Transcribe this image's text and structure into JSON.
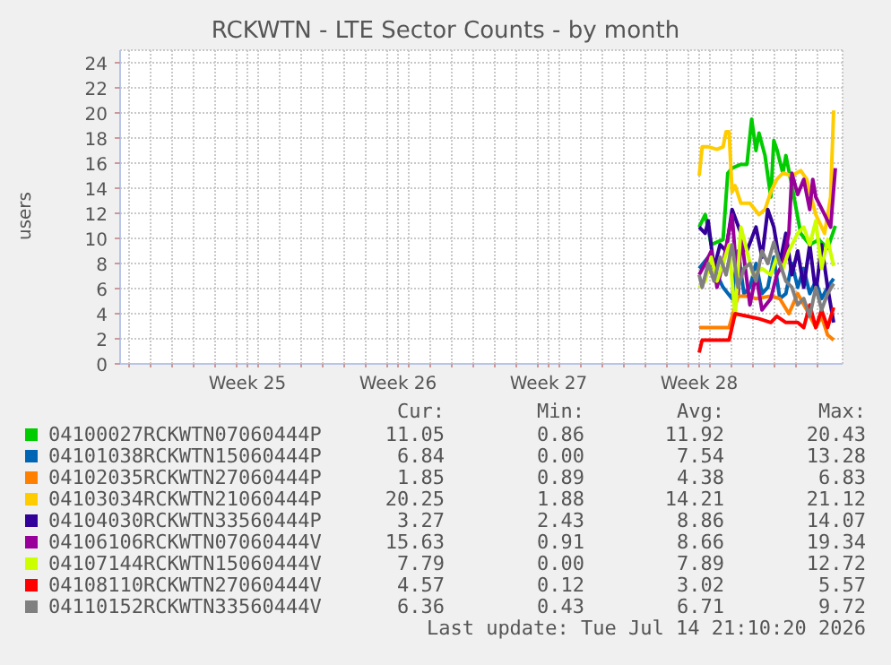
{
  "chart_data": {
    "type": "line",
    "title": "RCKWTN - LTE Sector Counts - by month",
    "ylabel": "users",
    "xlim": [
      "2026-06-11T14:00",
      "2026-07-15T04:00"
    ],
    "xticks": [
      {
        "value": "2026-06-12",
        "label": null
      },
      {
        "value": "2026-06-13",
        "label": null
      },
      {
        "value": "2026-06-14",
        "label": null
      },
      {
        "value": "2026-06-15",
        "label": null
      },
      {
        "value": "2026-06-16",
        "label": null
      },
      {
        "value": "2026-06-17",
        "label": null
      },
      {
        "value": "2026-06-17T12:00",
        "label": "Week 25"
      },
      {
        "value": "2026-06-18",
        "label": null
      },
      {
        "value": "2026-06-19",
        "label": null
      },
      {
        "value": "2026-06-20",
        "label": null
      },
      {
        "value": "2026-06-21",
        "label": null
      },
      {
        "value": "2026-06-22",
        "label": null
      },
      {
        "value": "2026-06-23",
        "label": null
      },
      {
        "value": "2026-06-24",
        "label": null
      },
      {
        "value": "2026-06-24T12:00",
        "label": "Week 26"
      },
      {
        "value": "2026-06-25",
        "label": null
      },
      {
        "value": "2026-06-26",
        "label": null
      },
      {
        "value": "2026-06-27",
        "label": null
      },
      {
        "value": "2026-06-28",
        "label": null
      },
      {
        "value": "2026-06-29",
        "label": null
      },
      {
        "value": "2026-06-30",
        "label": null
      },
      {
        "value": "2026-07-01",
        "label": null
      },
      {
        "value": "2026-07-01T12:00",
        "label": "Week 27"
      },
      {
        "value": "2026-07-02",
        "label": null
      },
      {
        "value": "2026-07-03",
        "label": null
      },
      {
        "value": "2026-07-04",
        "label": null
      },
      {
        "value": "2026-07-05",
        "label": null
      },
      {
        "value": "2026-07-06",
        "label": null
      },
      {
        "value": "2026-07-07",
        "label": null
      },
      {
        "value": "2026-07-08",
        "label": null
      },
      {
        "value": "2026-07-08T12:00",
        "label": "Week 28"
      },
      {
        "value": "2026-07-09",
        "label": null
      },
      {
        "value": "2026-07-10",
        "label": null
      },
      {
        "value": "2026-07-11",
        "label": null
      },
      {
        "value": "2026-07-12",
        "label": null
      },
      {
        "value": "2026-07-13",
        "label": null
      },
      {
        "value": "2026-07-14",
        "label": null
      }
    ],
    "ylim": [
      0,
      25
    ],
    "yticks": [
      0,
      2,
      4,
      6,
      8,
      10,
      12,
      14,
      16,
      18,
      20,
      22,
      24
    ],
    "grid": true,
    "legend": "bottom",
    "series": [
      {
        "name": "04100027RCKWTN07060444P",
        "color": "#00cc00",
        "x": [
          "2026-07-08T12:00",
          "2026-07-08T18:43",
          "2026-07-09T01:26",
          "2026-07-09T07:55",
          "2026-07-09T14:38",
          "2026-07-09T19:55",
          "2026-07-10T00:43",
          "2026-07-10T10:34",
          "2026-07-10T17:17",
          "2026-07-10T22:34",
          "2026-07-11T03:22",
          "2026-07-11T06:43",
          "2026-07-11T13:26",
          "2026-07-11T19:55",
          "2026-07-11T23:17",
          "2026-07-12T02:38",
          "2026-07-12T09:22",
          "2026-07-12T12:43",
          "2026-07-12T19:26",
          "2026-07-13T05:17",
          "2026-07-13T15:22",
          "2026-07-14T01:26",
          "2026-07-14T11:17",
          "2026-07-14T19:55"
        ],
        "values": [
          10.9,
          11.9,
          9.5,
          9.7,
          9.9,
          15.2,
          15.6,
          15.9,
          15.9,
          19.5,
          17.0,
          18.4,
          16.6,
          13.3,
          17.8,
          17.1,
          15.2,
          16.6,
          14.2,
          10.4,
          9.5,
          9.9,
          9.2,
          11.0
        ]
      },
      {
        "name": "04101038RCKWTN15060444P",
        "color": "#0066b3",
        "x": [
          "2026-07-08T12:00",
          "2026-07-08T22:05",
          "2026-07-09T07:55",
          "2026-07-09T14:38",
          "2026-07-10T00:43",
          "2026-07-10T07:26",
          "2026-07-10T13:55",
          "2026-07-10T20:38",
          "2026-07-11T03:22",
          "2026-07-11T10:05",
          "2026-07-11T16:34",
          "2026-07-11T23:17",
          "2026-07-12T06:00",
          "2026-07-12T12:43",
          "2026-07-12T19:26",
          "2026-07-13T01:55",
          "2026-07-13T08:38",
          "2026-07-13T15:22",
          "2026-07-13T22:05",
          "2026-07-14T04:34",
          "2026-07-14T11:17",
          "2026-07-14T18:00"
        ],
        "values": [
          7.6,
          8.5,
          7.1,
          6.1,
          5.2,
          9.0,
          5.6,
          6.1,
          8.0,
          5.6,
          6.1,
          8.5,
          5.2,
          5.6,
          8.0,
          6.1,
          7.6,
          5.6,
          6.6,
          5.2,
          6.1,
          6.8
        ]
      },
      {
        "name": "04102035RCKWTN27060444P",
        "color": "#ff8000",
        "x": [
          "2026-07-08T12:00",
          "2026-07-08T22:05",
          "2026-07-09T07:55",
          "2026-07-09T21:22",
          "2026-07-10T07:26",
          "2026-07-10T17:17",
          "2026-07-11T03:22",
          "2026-07-11T19:55",
          "2026-07-12T06:00",
          "2026-07-12T16:05",
          "2026-07-13T01:55",
          "2026-07-13T12:00",
          "2026-07-13T22:05",
          "2026-07-14T04:34",
          "2026-07-14T11:17",
          "2026-07-14T18:00"
        ],
        "values": [
          2.9,
          2.9,
          2.9,
          2.9,
          5.4,
          5.4,
          5.2,
          5.4,
          5.2,
          4.0,
          5.6,
          4.3,
          2.9,
          3.8,
          2.3,
          1.9
        ]
      },
      {
        "name": "04103034RCKWTN21060444P",
        "color": "#ffcc00",
        "x": [
          "2026-07-08T12:00",
          "2026-07-08T15:22",
          "2026-07-08T22:05",
          "2026-07-09T07:55",
          "2026-07-09T14:38",
          "2026-07-09T18:00",
          "2026-07-09T21:22",
          "2026-07-10T00:43",
          "2026-07-10T04:05",
          "2026-07-10T10:34",
          "2026-07-10T20:38",
          "2026-07-11T06:43",
          "2026-07-11T13:26",
          "2026-07-11T19:55",
          "2026-07-12T02:38",
          "2026-07-12T09:22",
          "2026-07-12T19:26",
          "2026-07-13T05:17",
          "2026-07-13T12:00",
          "2026-07-13T22:05",
          "2026-07-14T07:55",
          "2026-07-14T14:38",
          "2026-07-14T18:00"
        ],
        "values": [
          15.0,
          17.3,
          17.3,
          17.1,
          17.3,
          18.5,
          18.5,
          13.7,
          14.2,
          12.8,
          12.8,
          11.9,
          12.3,
          13.7,
          14.7,
          15.2,
          15.0,
          15.4,
          14.7,
          11.9,
          10.4,
          13.3,
          20.2
        ]
      },
      {
        "name": "04104030RCKWTN33560444P",
        "color": "#330099",
        "x": [
          "2026-07-08T12:00",
          "2026-07-08T18:43",
          "2026-07-08T22:05",
          "2026-07-09T04:34",
          "2026-07-09T11:17",
          "2026-07-09T18:00",
          "2026-07-10T00:43",
          "2026-07-10T10:34",
          "2026-07-10T17:17",
          "2026-07-11T03:22",
          "2026-07-11T10:05",
          "2026-07-11T16:34",
          "2026-07-11T23:17",
          "2026-07-12T06:00",
          "2026-07-12T12:43",
          "2026-07-12T19:26",
          "2026-07-13T01:55",
          "2026-07-13T08:38",
          "2026-07-13T15:22",
          "2026-07-13T22:05",
          "2026-07-14T04:34",
          "2026-07-14T11:17",
          "2026-07-14T18:00"
        ],
        "values": [
          10.9,
          10.4,
          11.4,
          7.6,
          9.5,
          9.0,
          12.3,
          10.4,
          9.0,
          10.9,
          8.5,
          12.3,
          10.9,
          8.0,
          10.4,
          7.1,
          9.0,
          6.1,
          9.5,
          5.6,
          9.5,
          6.1,
          3.3
        ]
      },
      {
        "name": "04106106RCKWTN07060444V",
        "color": "#990099",
        "x": [
          "2026-07-08T12:00",
          "2026-07-08T18:43",
          "2026-07-09T01:26",
          "2026-07-09T07:55",
          "2026-07-09T14:38",
          "2026-07-10T00:43",
          "2026-07-10T07:26",
          "2026-07-10T10:34",
          "2026-07-10T20:38",
          "2026-07-11T03:22",
          "2026-07-11T10:05",
          "2026-07-11T19:55",
          "2026-07-12T02:38",
          "2026-07-12T09:22",
          "2026-07-12T16:05",
          "2026-07-12T19:26",
          "2026-07-13T01:55",
          "2026-07-13T08:38",
          "2026-07-13T15:22",
          "2026-07-13T18:43",
          "2026-07-13T22:05",
          "2026-07-14T07:55",
          "2026-07-14T14:38",
          "2026-07-14T19:55"
        ],
        "values": [
          7.1,
          8.0,
          9.0,
          6.1,
          8.0,
          11.9,
          5.6,
          10.4,
          4.7,
          7.1,
          4.3,
          5.2,
          7.1,
          8.0,
          10.4,
          15.2,
          13.5,
          14.7,
          12.3,
          14.7,
          13.3,
          11.9,
          10.9,
          15.6
        ]
      },
      {
        "name": "04107144RCKWTN15060444V",
        "color": "#ccff00",
        "x": [
          "2026-07-08T12:00",
          "2026-07-08T18:43",
          "2026-07-09T01:26",
          "2026-07-09T07:55",
          "2026-07-09T14:38",
          "2026-07-09T21:22",
          "2026-07-10T04:05",
          "2026-07-10T10:34",
          "2026-07-10T17:17",
          "2026-07-11T00:00",
          "2026-07-11T10:05",
          "2026-07-11T19:55",
          "2026-07-12T02:38",
          "2026-07-12T09:22",
          "2026-07-12T16:05",
          "2026-07-13T01:55",
          "2026-07-13T08:38",
          "2026-07-13T15:22",
          "2026-07-13T22:05",
          "2026-07-14T04:34",
          "2026-07-14T11:17",
          "2026-07-14T18:00"
        ],
        "values": [
          6.1,
          6.6,
          8.5,
          6.6,
          8.0,
          9.5,
          3.8,
          10.9,
          9.0,
          7.1,
          7.6,
          7.1,
          8.5,
          7.6,
          9.0,
          10.4,
          10.9,
          9.5,
          11.4,
          7.6,
          9.9,
          7.8
        ]
      },
      {
        "name": "04108110RCKWTN27060444V",
        "color": "#ff0000",
        "x": [
          "2026-07-08T12:00",
          "2026-07-08T15:22",
          "2026-07-09T00:00",
          "2026-07-09T21:22",
          "2026-07-10T04:05",
          "2026-07-10T17:17",
          "2026-07-11T06:43",
          "2026-07-11T19:55",
          "2026-07-12T02:38",
          "2026-07-12T12:43",
          "2026-07-13T01:55",
          "2026-07-13T08:38",
          "2026-07-13T15:22",
          "2026-07-13T22:05",
          "2026-07-14T04:34",
          "2026-07-14T11:17",
          "2026-07-14T18:00"
        ],
        "values": [
          0.9,
          1.9,
          1.9,
          1.9,
          4.0,
          3.8,
          3.6,
          3.3,
          3.8,
          3.3,
          3.3,
          2.9,
          4.7,
          2.9,
          4.3,
          2.9,
          4.5
        ]
      },
      {
        "name": "04110152RCKWTN33560444V",
        "color": "#808080",
        "x": [
          "2026-07-08T12:00",
          "2026-07-08T15:22",
          "2026-07-08T22:05",
          "2026-07-09T04:34",
          "2026-07-09T11:17",
          "2026-07-09T18:00",
          "2026-07-10T00:43",
          "2026-07-10T07:26",
          "2026-07-10T13:55",
          "2026-07-10T20:38",
          "2026-07-11T03:22",
          "2026-07-11T10:05",
          "2026-07-11T16:34",
          "2026-07-11T23:17",
          "2026-07-12T06:00",
          "2026-07-12T12:43",
          "2026-07-12T19:26",
          "2026-07-13T01:55",
          "2026-07-13T08:38",
          "2026-07-13T15:22",
          "2026-07-13T22:05",
          "2026-07-14T04:34",
          "2026-07-14T11:17",
          "2026-07-14T18:00"
        ],
        "values": [
          7.1,
          6.1,
          8.0,
          6.6,
          8.5,
          7.1,
          9.5,
          6.1,
          7.6,
          8.0,
          6.6,
          9.0,
          8.0,
          9.7,
          8.0,
          6.6,
          6.1,
          4.7,
          5.2,
          3.8,
          6.1,
          4.3,
          5.6,
          6.4
        ]
      }
    ],
    "annotations": [
      "Cur:",
      "Min:",
      "Avg:",
      "Max:",
      "11.05",
      "0.86",
      "11.92",
      "20.43",
      "6.84",
      "0.00",
      "7.54",
      "13.28",
      "1.85",
      "0.89",
      "4.38",
      "6.83",
      "20.25",
      "1.88",
      "14.21",
      "21.12",
      "3.27",
      "2.43",
      "8.86",
      "14.07",
      "15.63",
      "0.91",
      "8.66",
      "19.34",
      "7.79",
      "0.00",
      "7.89",
      "12.72",
      "4.57",
      "0.12",
      "3.02",
      "5.57",
      "6.36",
      "0.43",
      "6.71",
      "9.72",
      "Last update: Tue Jul 14 21:10:20 2026"
    ]
  }
}
